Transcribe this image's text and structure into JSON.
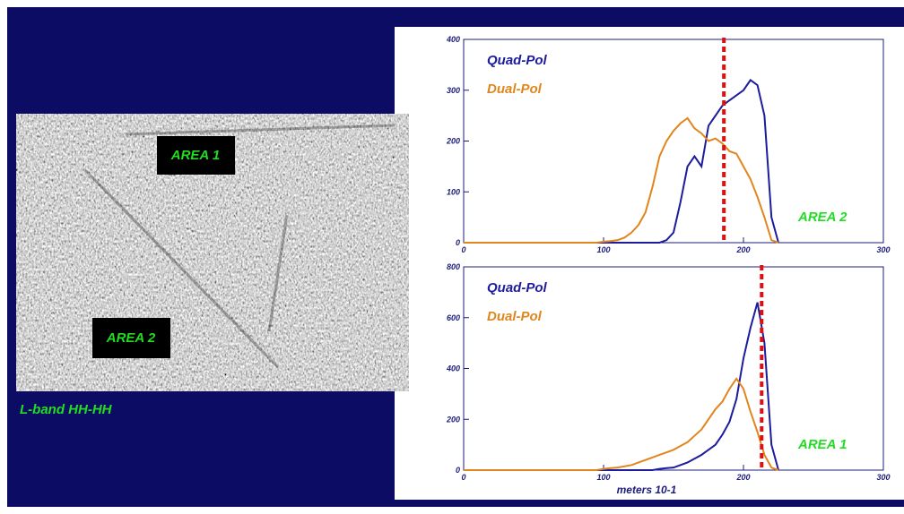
{
  "image": {
    "labels": [
      "AREA 1",
      "AREA 2"
    ],
    "caption": "L-band HH-HH"
  },
  "chart_data": [
    {
      "type": "line",
      "annotation": "AREA 2",
      "x": [
        0,
        5,
        10,
        15,
        20,
        25,
        30,
        35,
        40,
        45,
        50,
        55,
        60,
        65,
        70,
        75,
        80,
        85,
        90,
        95,
        100,
        105,
        110,
        115,
        120,
        125,
        130,
        135,
        140,
        145,
        150,
        155,
        160,
        165,
        170,
        175,
        180,
        185,
        190,
        195,
        200,
        205,
        210,
        215,
        220,
        225
      ],
      "series": [
        {
          "name": "Quad-Pol",
          "color": "#1c1c9c",
          "values": [
            0,
            0,
            0,
            0,
            0,
            0,
            0,
            0,
            0,
            0,
            0,
            0,
            0,
            0,
            0,
            0,
            0,
            0,
            0,
            0,
            0,
            0,
            0,
            0,
            0,
            0,
            0,
            0,
            0,
            5,
            20,
            80,
            150,
            170,
            150,
            230,
            250,
            270,
            280,
            290,
            300,
            320,
            310,
            250,
            50,
            0
          ]
        },
        {
          "name": "Dual-Pol",
          "color": "#e0861c",
          "values": [
            0,
            0,
            0,
            0,
            0,
            0,
            0,
            0,
            0,
            0,
            0,
            0,
            0,
            0,
            0,
            0,
            0,
            0,
            0,
            0,
            2,
            3,
            5,
            10,
            20,
            35,
            60,
            110,
            170,
            200,
            220,
            235,
            245,
            225,
            215,
            200,
            205,
            195,
            180,
            175,
            150,
            125,
            90,
            50,
            5,
            0
          ]
        }
      ],
      "vline": {
        "value": 186,
        "color": "#e01010"
      },
      "xlim": [
        0,
        300
      ],
      "xticks": [
        0,
        100,
        200,
        300
      ],
      "ylim": [
        0,
        400
      ],
      "yticks": [
        0,
        100,
        200,
        300,
        400
      ]
    },
    {
      "type": "line",
      "annotation": "AREA 1",
      "x_label": "meters 10-1",
      "x": [
        0,
        5,
        10,
        15,
        20,
        25,
        30,
        35,
        40,
        45,
        50,
        55,
        60,
        65,
        70,
        75,
        80,
        85,
        90,
        95,
        100,
        105,
        110,
        115,
        120,
        125,
        130,
        135,
        140,
        145,
        150,
        155,
        160,
        165,
        170,
        175,
        180,
        185,
        190,
        195,
        200,
        205,
        210,
        215,
        220,
        225
      ],
      "series": [
        {
          "name": "Quad-Pol",
          "color": "#1c1c9c",
          "values": [
            0,
            0,
            0,
            0,
            0,
            0,
            0,
            0,
            0,
            0,
            0,
            0,
            0,
            0,
            0,
            0,
            0,
            0,
            0,
            0,
            0,
            0,
            0,
            0,
            0,
            0,
            0,
            0,
            5,
            8,
            10,
            20,
            30,
            45,
            60,
            80,
            100,
            140,
            190,
            280,
            440,
            560,
            660,
            500,
            100,
            0
          ]
        },
        {
          "name": "Dual-Pol",
          "color": "#e0861c",
          "values": [
            0,
            0,
            0,
            0,
            0,
            0,
            0,
            0,
            0,
            0,
            0,
            0,
            0,
            0,
            0,
            0,
            0,
            0,
            0,
            0,
            5,
            8,
            10,
            15,
            20,
            30,
            40,
            50,
            60,
            70,
            80,
            95,
            110,
            135,
            160,
            200,
            240,
            270,
            320,
            360,
            320,
            230,
            150,
            60,
            10,
            0
          ]
        }
      ],
      "vline": {
        "value": 213,
        "color": "#e01010"
      },
      "xlim": [
        0,
        300
      ],
      "xticks": [
        0,
        100,
        200,
        300
      ],
      "ylim": [
        0,
        800
      ],
      "yticks": [
        0,
        200,
        400,
        600,
        800
      ]
    }
  ]
}
